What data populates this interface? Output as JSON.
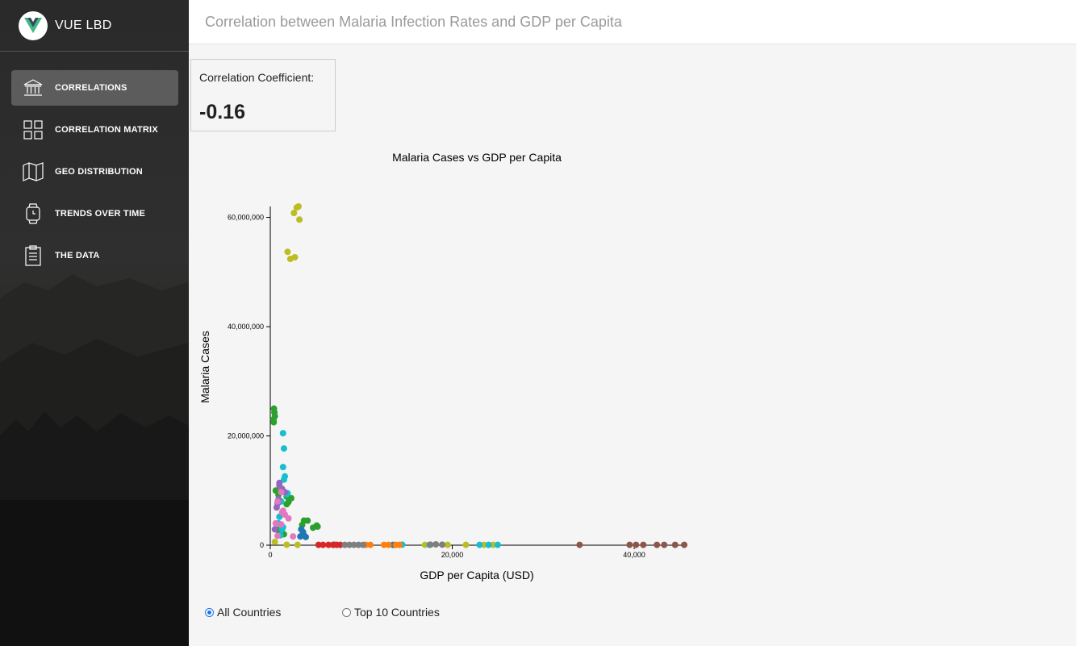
{
  "brand": {
    "title": "VUE LBD",
    "logo_icon": "vue-logo-icon"
  },
  "sidebar": {
    "items": [
      {
        "label": "CORRELATIONS",
        "icon": "bank-icon",
        "active": true
      },
      {
        "label": "CORRELATION MATRIX",
        "icon": "grid-icon",
        "active": false
      },
      {
        "label": "GEO DISTRIBUTION",
        "icon": "map-icon",
        "active": false
      },
      {
        "label": "TRENDS OVER TIME",
        "icon": "watch-icon",
        "active": false
      },
      {
        "label": "THE DATA",
        "icon": "clipboard-icon",
        "active": false
      }
    ]
  },
  "header": {
    "title": "Correlation between Malaria Infection Rates and GDP per Capita"
  },
  "coefficient": {
    "label": "Correlation Coefficient:",
    "value": "-0.16"
  },
  "filters": {
    "options": [
      {
        "label": "All Countries",
        "checked": true
      },
      {
        "label": "Top 10 Countries",
        "checked": false
      }
    ]
  },
  "chart_data": {
    "type": "scatter",
    "title": "Malaria Cases vs GDP per Capita",
    "xlabel": "GDP per Capita (USD)",
    "ylabel": "Malaria Cases",
    "xlim": [
      0,
      45500
    ],
    "ylim": [
      0,
      62000000
    ],
    "x_ticks": [
      {
        "v": 0,
        "label": "0"
      },
      {
        "v": 20000,
        "label": "20,000"
      },
      {
        "v": 40000,
        "label": "40,000"
      }
    ],
    "y_ticks": [
      {
        "v": 0,
        "label": "0"
      },
      {
        "v": 20000000,
        "label": "20,000,000"
      },
      {
        "v": 40000000,
        "label": "40,000,000"
      },
      {
        "v": 60000000,
        "label": "60,000,000"
      }
    ],
    "grid": false,
    "legend": "none",
    "series": [
      {
        "color": "#bcbd22",
        "points": [
          [
            2600,
            60800000
          ],
          [
            2900,
            61800000
          ],
          [
            3100,
            62000000
          ],
          [
            3200,
            59600000
          ],
          [
            1900,
            53700000
          ],
          [
            2200,
            52400000
          ],
          [
            2700,
            52700000
          ],
          [
            500,
            600000
          ],
          [
            1800,
            80000
          ],
          [
            3000,
            60000
          ],
          [
            17000,
            60000
          ],
          [
            19500,
            60000
          ],
          [
            21500,
            60000
          ],
          [
            23500,
            60000
          ],
          [
            24500,
            60000
          ]
        ]
      },
      {
        "color": "#2ca02c",
        "points": [
          [
            400,
            25000000
          ],
          [
            450,
            24300000
          ],
          [
            500,
            23600000
          ],
          [
            350,
            23000000
          ],
          [
            380,
            22500000
          ],
          [
            600,
            10000000
          ],
          [
            900,
            9200000
          ],
          [
            1800,
            8900000
          ],
          [
            2300,
            8600000
          ],
          [
            2000,
            7900000
          ],
          [
            1800,
            7500000
          ],
          [
            3700,
            4500000
          ],
          [
            4100,
            4500000
          ],
          [
            3500,
            3700000
          ],
          [
            5200,
            3400000
          ],
          [
            5100,
            3600000
          ],
          [
            4700,
            3200000
          ],
          [
            800,
            2800000
          ],
          [
            1000,
            2500000
          ],
          [
            1500,
            2000000
          ]
        ]
      },
      {
        "color": "#17becf",
        "points": [
          [
            1400,
            20500000
          ],
          [
            1500,
            17700000
          ],
          [
            1400,
            14300000
          ],
          [
            1600,
            12600000
          ],
          [
            1500,
            12000000
          ],
          [
            1800,
            9300000
          ],
          [
            1900,
            9500000
          ],
          [
            1200,
            8000000
          ],
          [
            1000,
            5200000
          ],
          [
            900,
            4000000
          ],
          [
            1400,
            3300000
          ],
          [
            1300,
            2900000
          ],
          [
            1100,
            1800000
          ],
          [
            14500,
            100000
          ],
          [
            17500,
            60000
          ],
          [
            23000,
            60000
          ],
          [
            24000,
            60000
          ],
          [
            25000,
            60000
          ]
        ]
      },
      {
        "color": "#9467bd",
        "points": [
          [
            1000,
            11400000
          ],
          [
            1000,
            10900000
          ],
          [
            900,
            8400000
          ],
          [
            700,
            6900000
          ],
          [
            800,
            7600000
          ],
          [
            1300,
            10300000
          ],
          [
            1600,
            9700000
          ],
          [
            500,
            2900000
          ]
        ]
      },
      {
        "color": "#e377c2",
        "points": [
          [
            1200,
            9700000
          ],
          [
            800,
            8000000
          ],
          [
            1400,
            6300000
          ],
          [
            1300,
            6000000
          ],
          [
            600,
            4000000
          ],
          [
            1600,
            5600000
          ],
          [
            2000,
            4900000
          ],
          [
            1200,
            3800000
          ],
          [
            2500,
            1600000
          ],
          [
            800,
            1700000
          ]
        ]
      },
      {
        "color": "#1f77b4",
        "points": [
          [
            3400,
            2900000
          ],
          [
            3600,
            2400000
          ],
          [
            3700,
            1800000
          ],
          [
            3300,
            1600000
          ],
          [
            3900,
            1500000
          ],
          [
            7000,
            100000
          ],
          [
            13500,
            60000
          ]
        ]
      },
      {
        "color": "#ff7f0e",
        "points": [
          [
            10500,
            60000
          ],
          [
            11000,
            60000
          ],
          [
            12500,
            60000
          ],
          [
            13000,
            60000
          ],
          [
            13800,
            60000
          ],
          [
            14200,
            60000
          ]
        ]
      },
      {
        "color": "#d62728",
        "points": [
          [
            5300,
            60000
          ],
          [
            5800,
            60000
          ],
          [
            6400,
            60000
          ],
          [
            6900,
            60000
          ],
          [
            7300,
            60000
          ],
          [
            7700,
            60000
          ]
        ]
      },
      {
        "color": "#7f7f7f",
        "points": [
          [
            8200,
            60000
          ],
          [
            8700,
            60000
          ],
          [
            9200,
            60000
          ],
          [
            9700,
            60000
          ],
          [
            10200,
            60000
          ],
          [
            17600,
            100000
          ],
          [
            18200,
            150000
          ],
          [
            18900,
            100000
          ]
        ]
      },
      {
        "color": "#8c564b",
        "points": [
          [
            34000,
            60000
          ],
          [
            39500,
            60000
          ],
          [
            40200,
            60000
          ],
          [
            41000,
            60000
          ],
          [
            42500,
            60000
          ],
          [
            43300,
            60000
          ],
          [
            44500,
            60000
          ],
          [
            45500,
            60000
          ]
        ]
      }
    ]
  }
}
